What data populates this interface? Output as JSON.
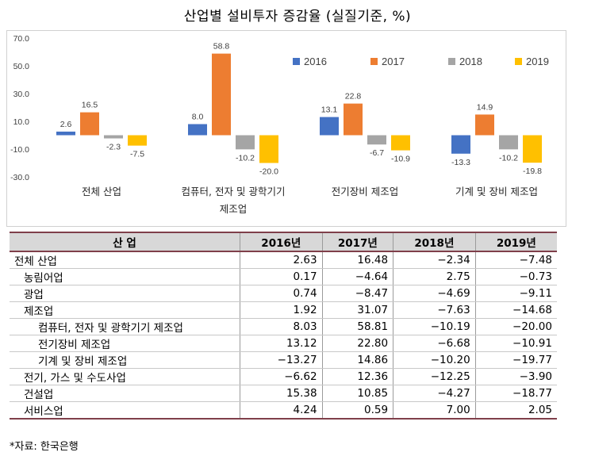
{
  "title": "산업별 설비투자 증감율 (실질기준, %)",
  "chart_data": {
    "type": "bar",
    "title": "산업별 설비투자 증감율 (실질기준, %)",
    "categories": [
      "전체 산업",
      "컴퓨터, 전자 및 광학기기 제조업",
      "전기장비 제조업",
      "기계 및 장비 제조업"
    ],
    "category_lines": [
      [
        "전체 산업"
      ],
      [
        "컴퓨터, 전자 및 광학기기",
        "제조업"
      ],
      [
        "전기장비 제조업"
      ],
      [
        "기계 및 장비 제조업"
      ]
    ],
    "series": [
      {
        "name": "2016",
        "color": "#4472c4",
        "values": [
          2.6,
          8.0,
          13.1,
          -13.3
        ]
      },
      {
        "name": "2017",
        "color": "#ed7d31",
        "values": [
          16.5,
          58.8,
          22.8,
          14.9
        ]
      },
      {
        "name": "2018",
        "color": "#a5a5a5",
        "values": [
          -2.3,
          -10.2,
          -6.7,
          -10.2
        ]
      },
      {
        "name": "2019",
        "color": "#ffc000",
        "values": [
          -7.5,
          -20.0,
          -10.9,
          -19.8
        ]
      }
    ],
    "yticks": [
      "-30.0",
      "-10.0",
      "10.0",
      "30.0",
      "50.0",
      "70.0"
    ],
    "ylim": [
      -30,
      70
    ],
    "legend_position": "top-right",
    "grid": false
  },
  "table": {
    "headers": [
      "산 업",
      "2016년",
      "2017년",
      "2018년",
      "2019년"
    ],
    "rows": [
      {
        "label": "전체 산업",
        "indent": 0,
        "values": [
          "2.63",
          "16.48",
          "−2.34",
          "−7.48"
        ]
      },
      {
        "label": "농림어업",
        "indent": 1,
        "values": [
          "0.17",
          "−4.64",
          "2.75",
          "−0.73"
        ]
      },
      {
        "label": "광업",
        "indent": 1,
        "values": [
          "0.74",
          "−8.47",
          "−4.69",
          "−9.11"
        ]
      },
      {
        "label": "제조업",
        "indent": 1,
        "values": [
          "1.92",
          "31.07",
          "−7.63",
          "−14.68"
        ]
      },
      {
        "label": "컴퓨터, 전자 및 광학기기 제조업",
        "indent": 2,
        "values": [
          "8.03",
          "58.81",
          "−10.19",
          "−20.00"
        ]
      },
      {
        "label": "전기장비 제조업",
        "indent": 2,
        "values": [
          "13.12",
          "22.80",
          "−6.68",
          "−10.91"
        ]
      },
      {
        "label": "기계 및 장비 제조업",
        "indent": 2,
        "values": [
          "−13.27",
          "14.86",
          "−10.20",
          "−19.77"
        ]
      },
      {
        "label": "전기, 가스 및 수도사업",
        "indent": 1,
        "values": [
          "−6.62",
          "12.36",
          "−12.25",
          "−3.90"
        ]
      },
      {
        "label": "건설업",
        "indent": 1,
        "values": [
          "15.38",
          "10.85",
          "−4.27",
          "−18.77"
        ]
      },
      {
        "label": "서비스업",
        "indent": 1,
        "values": [
          "4.24",
          "0.59",
          "7.00",
          "2.05"
        ]
      }
    ]
  },
  "source": "*자료: 한국은행"
}
